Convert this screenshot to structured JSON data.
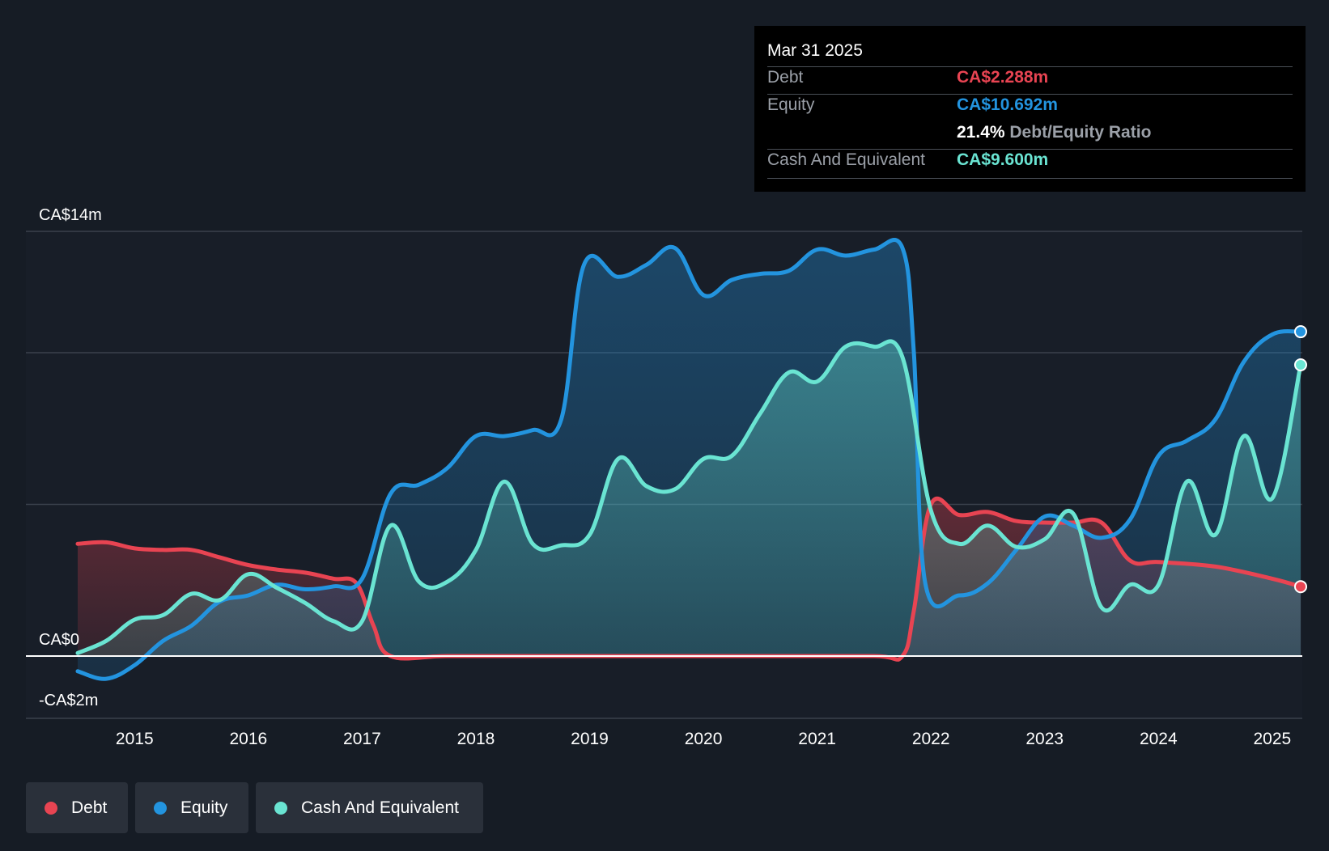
{
  "colors": {
    "background": "#161c25",
    "debt": "#e84452",
    "equity": "#2394df",
    "cash": "#6ae4d2"
  },
  "tooltip": {
    "date": "Mar 31 2025",
    "debt_label": "Debt",
    "debt_value": "CA$2.288m",
    "equity_label": "Equity",
    "equity_value": "CA$10.692m",
    "ratio_value": "21.4%",
    "ratio_label": "Debt/Equity Ratio",
    "cash_label": "Cash And Equivalent",
    "cash_value": "CA$9.600m"
  },
  "legend": [
    {
      "label": "Debt",
      "color": "#e84452"
    },
    {
      "label": "Equity",
      "color": "#2394df"
    },
    {
      "label": "Cash And Equivalent",
      "color": "#6ae4d2"
    }
  ],
  "chart_data": {
    "type": "area",
    "y_unit": "CA$ millions",
    "ylim": [
      -2,
      14
    ],
    "xlim": [
      2014.5,
      2025.25
    ],
    "y_tick_labels": [
      {
        "value": 14,
        "label": "CA$14m"
      },
      {
        "value": 0,
        "label": "CA$0"
      },
      {
        "value": -2,
        "label": "-CA$2m"
      }
    ],
    "gridlines": [
      14,
      10,
      5
    ],
    "x_ticks": [
      2015,
      2016,
      2017,
      2018,
      2019,
      2020,
      2021,
      2022,
      2023,
      2024,
      2025
    ],
    "x_tick_labels": [
      "2015",
      "2016",
      "2017",
      "2018",
      "2019",
      "2020",
      "2021",
      "2022",
      "2023",
      "2024",
      "2025"
    ],
    "series": [
      {
        "name": "Debt",
        "color": "#e84452",
        "points": [
          [
            2014.5,
            3.7
          ],
          [
            2014.75,
            3.75
          ],
          [
            2015.0,
            3.55
          ],
          [
            2015.25,
            3.5
          ],
          [
            2015.5,
            3.5
          ],
          [
            2015.75,
            3.25
          ],
          [
            2016.0,
            3.0
          ],
          [
            2016.25,
            2.85
          ],
          [
            2016.5,
            2.75
          ],
          [
            2016.75,
            2.55
          ],
          [
            2016.95,
            2.4
          ],
          [
            2017.1,
            1.0
          ],
          [
            2017.25,
            0.0
          ],
          [
            2017.75,
            0.0
          ],
          [
            2018.5,
            0.0
          ],
          [
            2019.5,
            0.0
          ],
          [
            2020.5,
            0.0
          ],
          [
            2021.5,
            0.0
          ],
          [
            2021.75,
            0.0
          ],
          [
            2021.85,
            1.5
          ],
          [
            2022.0,
            5.0
          ],
          [
            2022.25,
            4.65
          ],
          [
            2022.5,
            4.75
          ],
          [
            2022.75,
            4.45
          ],
          [
            2023.0,
            4.4
          ],
          [
            2023.25,
            4.4
          ],
          [
            2023.5,
            4.4
          ],
          [
            2023.75,
            3.15
          ],
          [
            2024.0,
            3.1
          ],
          [
            2024.5,
            2.95
          ],
          [
            2025.0,
            2.55
          ],
          [
            2025.25,
            2.288
          ]
        ]
      },
      {
        "name": "Equity",
        "color": "#2394df",
        "points": [
          [
            2014.5,
            -0.5
          ],
          [
            2014.75,
            -0.75
          ],
          [
            2015.0,
            -0.3
          ],
          [
            2015.25,
            0.5
          ],
          [
            2015.5,
            1.0
          ],
          [
            2015.75,
            1.8
          ],
          [
            2016.0,
            2.0
          ],
          [
            2016.25,
            2.35
          ],
          [
            2016.5,
            2.2
          ],
          [
            2016.75,
            2.3
          ],
          [
            2017.0,
            2.55
          ],
          [
            2017.25,
            5.35
          ],
          [
            2017.5,
            5.65
          ],
          [
            2017.75,
            6.2
          ],
          [
            2018.0,
            7.25
          ],
          [
            2018.25,
            7.25
          ],
          [
            2018.5,
            7.45
          ],
          [
            2018.75,
            7.8
          ],
          [
            2018.95,
            12.9
          ],
          [
            2019.25,
            12.5
          ],
          [
            2019.5,
            12.9
          ],
          [
            2019.75,
            13.45
          ],
          [
            2020.0,
            11.9
          ],
          [
            2020.25,
            12.4
          ],
          [
            2020.5,
            12.6
          ],
          [
            2020.75,
            12.7
          ],
          [
            2021.0,
            13.4
          ],
          [
            2021.25,
            13.2
          ],
          [
            2021.5,
            13.4
          ],
          [
            2021.75,
            13.45
          ],
          [
            2021.85,
            10.0
          ],
          [
            2021.95,
            2.4
          ],
          [
            2022.25,
            2.0
          ],
          [
            2022.5,
            2.4
          ],
          [
            2022.75,
            3.5
          ],
          [
            2023.0,
            4.6
          ],
          [
            2023.25,
            4.3
          ],
          [
            2023.5,
            3.9
          ],
          [
            2023.75,
            4.5
          ],
          [
            2024.0,
            6.6
          ],
          [
            2024.25,
            7.1
          ],
          [
            2024.5,
            7.8
          ],
          [
            2024.75,
            9.7
          ],
          [
            2025.0,
            10.6
          ],
          [
            2025.25,
            10.692
          ]
        ]
      },
      {
        "name": "Cash And Equivalent",
        "color": "#6ae4d2",
        "points": [
          [
            2014.5,
            0.1
          ],
          [
            2014.75,
            0.5
          ],
          [
            2015.0,
            1.2
          ],
          [
            2015.25,
            1.35
          ],
          [
            2015.5,
            2.05
          ],
          [
            2015.75,
            1.85
          ],
          [
            2016.0,
            2.7
          ],
          [
            2016.25,
            2.25
          ],
          [
            2016.5,
            1.75
          ],
          [
            2016.75,
            1.15
          ],
          [
            2017.0,
            1.15
          ],
          [
            2017.25,
            4.3
          ],
          [
            2017.5,
            2.45
          ],
          [
            2017.75,
            2.45
          ],
          [
            2018.0,
            3.5
          ],
          [
            2018.25,
            5.75
          ],
          [
            2018.5,
            3.7
          ],
          [
            2018.75,
            3.65
          ],
          [
            2019.0,
            4.0
          ],
          [
            2019.25,
            6.5
          ],
          [
            2019.5,
            5.6
          ],
          [
            2019.75,
            5.5
          ],
          [
            2020.0,
            6.5
          ],
          [
            2020.25,
            6.6
          ],
          [
            2020.5,
            8.0
          ],
          [
            2020.75,
            9.35
          ],
          [
            2021.0,
            9.05
          ],
          [
            2021.25,
            10.2
          ],
          [
            2021.5,
            10.2
          ],
          [
            2021.75,
            9.85
          ],
          [
            2022.0,
            4.8
          ],
          [
            2022.25,
            3.7
          ],
          [
            2022.5,
            4.3
          ],
          [
            2022.75,
            3.6
          ],
          [
            2023.0,
            3.85
          ],
          [
            2023.25,
            4.7
          ],
          [
            2023.5,
            1.6
          ],
          [
            2023.75,
            2.35
          ],
          [
            2024.0,
            2.35
          ],
          [
            2024.25,
            5.75
          ],
          [
            2024.5,
            4.0
          ],
          [
            2024.75,
            7.25
          ],
          [
            2025.0,
            5.2
          ],
          [
            2025.25,
            9.6
          ]
        ]
      }
    ]
  }
}
